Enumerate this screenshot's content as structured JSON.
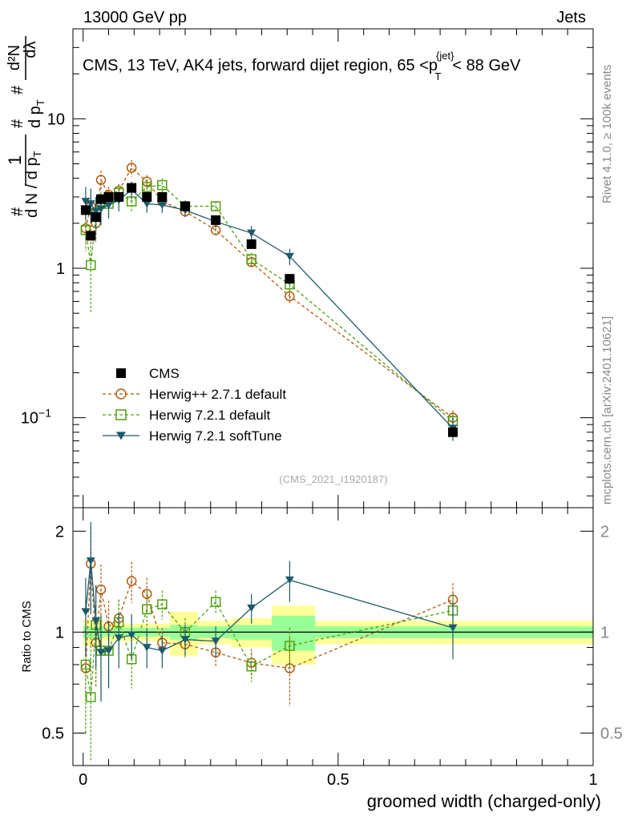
{
  "header": {
    "left": "13000 GeV pp",
    "right": "Jets"
  },
  "side": {
    "rivet": "Rivet 4.1.0, ≥ 100k events",
    "mcplots": "mcplots.cern.ch [arXiv:2401.10621]"
  },
  "chart_data": [
    {
      "type": "line",
      "yscale": "log",
      "title": "CMS, 13 TeV, AK4 jets, forward dijet region, 65 <p_T^{jet}< 88 GeV",
      "title_parts": {
        "prefix": "CMS, 13 TeV, AK4 jets, forward dijet region, 65 <p",
        "sub": "T",
        "sup": "{jet}",
        "suffix": "< 88 GeV"
      },
      "ylabel_parts": {
        "one": "1",
        "num_left": "#",
        "den_left": "d N / d p",
        "den_sub": "T",
        "num_right": "d²N",
        "frac2_num": "#",
        "frac2_den": "d p",
        "frac2_den_sub": "T",
        "end": "dλ",
        "hash": "#"
      },
      "watermark": "(CMS_2021_I1920187)",
      "ylim": [
        0.025,
        40
      ],
      "xlim": [
        -0.02,
        1.0
      ],
      "y_ticks": [
        {
          "value": 0.1,
          "label": "10",
          "exp": "−1"
        },
        {
          "value": 1,
          "label": "1",
          "exp": ""
        },
        {
          "value": 10,
          "label": "10",
          "exp": ""
        }
      ],
      "legend": [
        {
          "name": "CMS",
          "color": "#000000",
          "marker": "filled-square",
          "style": "none"
        },
        {
          "name": "Herwig++ 2.7.1 default",
          "color": "#b25a0e",
          "marker": "open-circle",
          "style": "dashed"
        },
        {
          "name": "Herwig 7.2.1 default",
          "color": "#4ea00f",
          "marker": "open-square",
          "style": "dashed"
        },
        {
          "name": "Herwig 7.2.1 softTune",
          "color": "#1d5a6c",
          "marker": "filled-triangle-down",
          "style": "solid"
        }
      ],
      "series": [
        {
          "name": "CMS",
          "x": [
            0.005,
            0.015,
            0.025,
            0.035,
            0.05,
            0.07,
            0.095,
            0.125,
            0.155,
            0.2,
            0.26,
            0.33,
            0.405,
            0.725
          ],
          "y": [
            2.45,
            1.65,
            2.2,
            2.9,
            3.0,
            3.0,
            3.45,
            3.0,
            3.0,
            2.6,
            2.1,
            1.45,
            0.85,
            0.08
          ]
        },
        {
          "name": "Herwig++ 2.7.1 default",
          "x": [
            0.005,
            0.015,
            0.025,
            0.035,
            0.05,
            0.07,
            0.095,
            0.125,
            0.155,
            0.2,
            0.26,
            0.33,
            0.405,
            0.725
          ],
          "y": [
            1.85,
            2.6,
            2.0,
            3.9,
            3.1,
            3.3,
            4.7,
            3.8,
            2.8,
            2.4,
            1.8,
            1.1,
            0.65,
            0.1
          ],
          "err": [
            0.35,
            0.8,
            0.5,
            0.6,
            0.4,
            0.35,
            0.6,
            0.4,
            0.3,
            0.2,
            0.15,
            0.1,
            0.08,
            0.012
          ]
        },
        {
          "name": "Herwig 7.2.1 default",
          "x": [
            0.005,
            0.015,
            0.025,
            0.035,
            0.05,
            0.07,
            0.095,
            0.125,
            0.155,
            0.2,
            0.26,
            0.33,
            0.405,
            0.725
          ],
          "y": [
            1.8,
            1.05,
            2.3,
            2.7,
            2.7,
            3.2,
            2.8,
            3.5,
            3.6,
            2.6,
            2.6,
            1.15,
            0.78,
            0.095
          ],
          "err": [
            0.5,
            0.55,
            0.6,
            0.55,
            0.5,
            0.45,
            0.4,
            0.45,
            0.4,
            0.25,
            0.2,
            0.12,
            0.09,
            0.012
          ]
        },
        {
          "name": "Herwig 7.2.1 softTune",
          "x": [
            0.005,
            0.015,
            0.025,
            0.035,
            0.05,
            0.07,
            0.095,
            0.125,
            0.155,
            0.2,
            0.26,
            0.33,
            0.405,
            0.725
          ],
          "y": [
            2.8,
            2.7,
            2.4,
            2.5,
            2.65,
            2.85,
            3.35,
            2.7,
            2.65,
            2.45,
            2.05,
            1.72,
            1.2,
            0.085
          ],
          "err": [
            0.7,
            0.7,
            0.6,
            0.55,
            0.5,
            0.45,
            0.45,
            0.35,
            0.3,
            0.25,
            0.2,
            0.2,
            0.15,
            0.015
          ]
        }
      ]
    },
    {
      "type": "line",
      "ylabel": "Ratio to CMS",
      "xlabel": "groomed width (charged-only)",
      "ylim": [
        0.4,
        2.35
      ],
      "xlim": [
        -0.02,
        1.0
      ],
      "y_ticks": [
        0.5,
        1,
        2
      ],
      "x_ticks": [
        0,
        0.5,
        1
      ],
      "x_tick_labels": [
        "0",
        "0.5",
        "1"
      ],
      "band_bins": [
        {
          "x0": 0.0,
          "x1": 0.04,
          "stat": 0.04,
          "total": 0.09
        },
        {
          "x0": 0.04,
          "x1": 0.08,
          "stat": 0.03,
          "total": 0.06
        },
        {
          "x0": 0.08,
          "x1": 0.17,
          "stat": 0.03,
          "total": 0.06
        },
        {
          "x0": 0.17,
          "x1": 0.225,
          "stat": 0.05,
          "total": 0.15
        },
        {
          "x0": 0.225,
          "x1": 0.29,
          "stat": 0.04,
          "total": 0.08
        },
        {
          "x0": 0.29,
          "x1": 0.37,
          "stat": 0.05,
          "total": 0.1
        },
        {
          "x0": 0.37,
          "x1": 0.455,
          "stat": 0.12,
          "total": 0.2
        },
        {
          "x0": 0.455,
          "x1": 1.0,
          "stat": 0.04,
          "total": 0.08
        }
      ],
      "series": [
        {
          "name": "Herwig++ 2.7.1 default",
          "y": [
            0.78,
            1.6,
            0.93,
            1.34,
            1.04,
            1.1,
            1.42,
            1.3,
            0.93,
            0.92,
            0.87,
            0.81,
            0.78,
            1.25
          ],
          "err": [
            0.15,
            0.45,
            0.25,
            0.25,
            0.2,
            0.15,
            0.2,
            0.15,
            0.1,
            0.08,
            0.08,
            0.08,
            0.18,
            0.15
          ]
        },
        {
          "name": "Herwig 7.2.1 default",
          "y": [
            0.8,
            0.64,
            1.05,
            0.88,
            0.88,
            1.07,
            0.83,
            1.17,
            1.21,
            1.0,
            1.23,
            0.79,
            0.91,
            1.16
          ],
          "err": [
            0.3,
            0.35,
            0.3,
            0.25,
            0.2,
            0.18,
            0.15,
            0.15,
            0.12,
            0.1,
            0.1,
            0.08,
            0.12,
            0.15
          ]
        },
        {
          "name": "Herwig 7.2.1 softTune",
          "y": [
            1.15,
            1.63,
            1.08,
            0.87,
            0.88,
            0.96,
            0.98,
            0.9,
            0.88,
            0.95,
            0.94,
            1.18,
            1.43,
            1.03
          ],
          "err": [
            0.3,
            0.5,
            0.3,
            0.25,
            0.2,
            0.18,
            0.15,
            0.12,
            0.1,
            0.1,
            0.1,
            0.12,
            0.2,
            0.2
          ]
        }
      ]
    }
  ]
}
